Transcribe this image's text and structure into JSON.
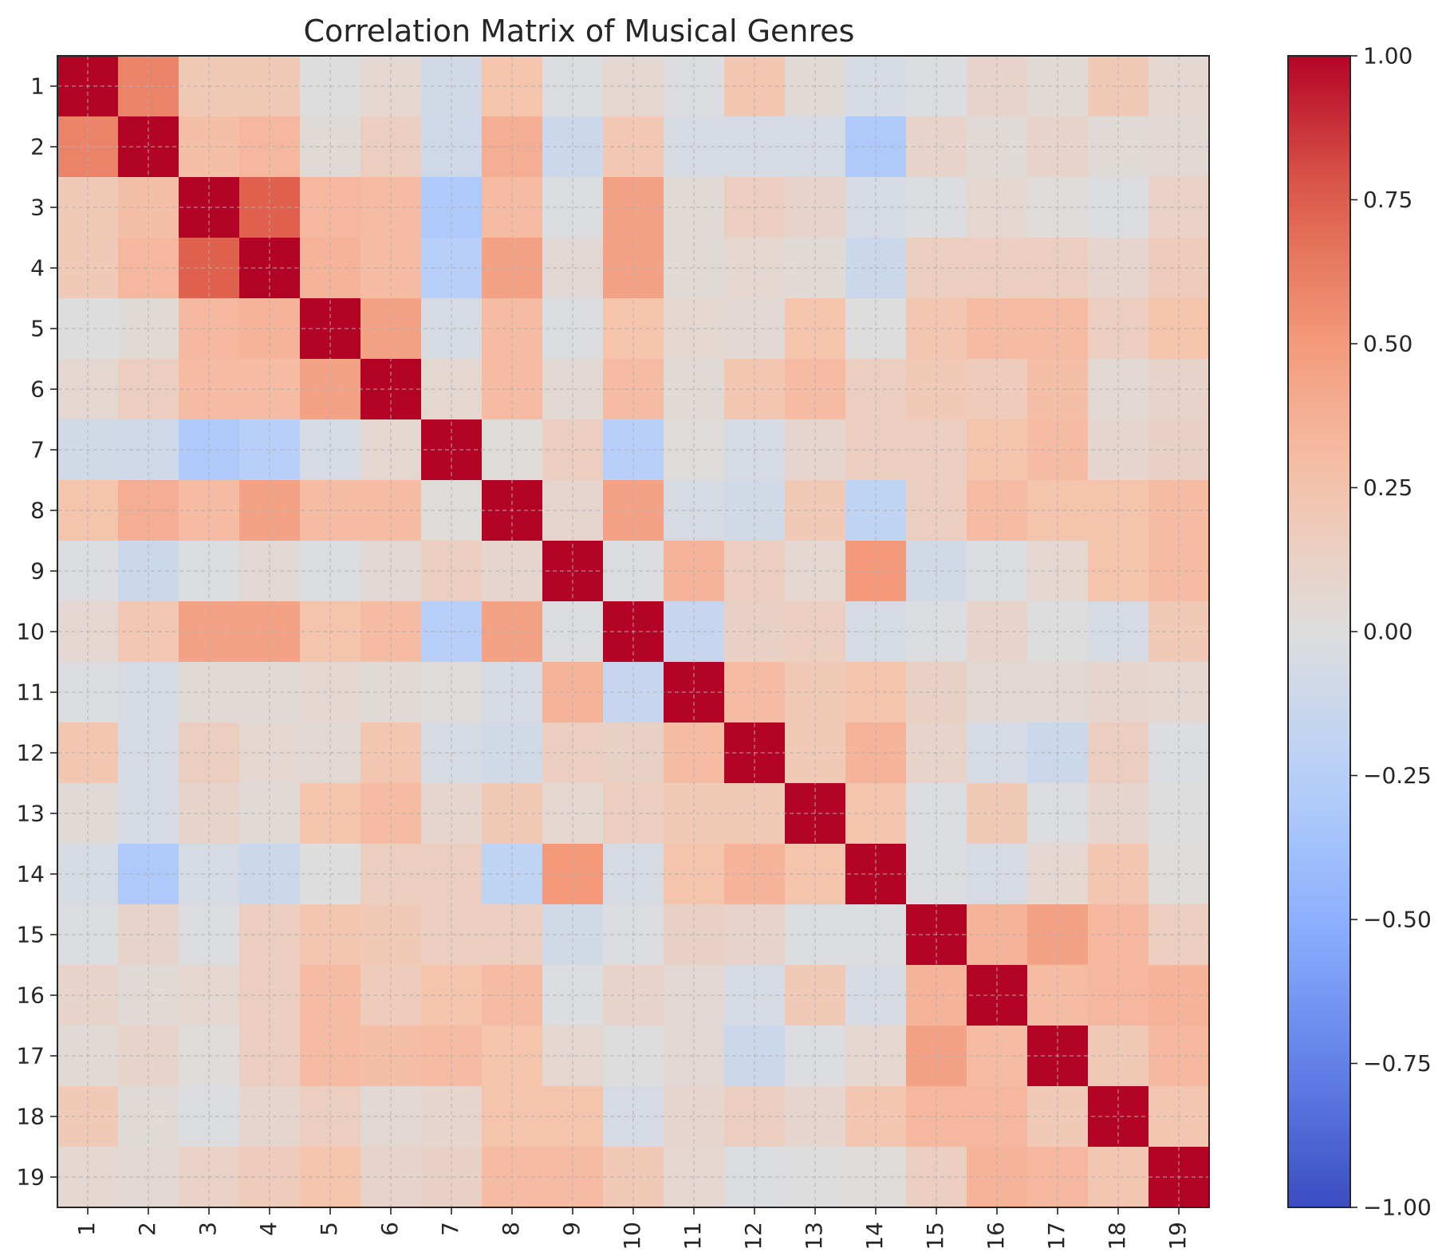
{
  "chart_data": {
    "type": "heatmap",
    "title": "Correlation Matrix of Musical Genres",
    "xlabel": "",
    "ylabel": "",
    "labels": [
      "1",
      "2",
      "3",
      "4",
      "5",
      "6",
      "7",
      "8",
      "9",
      "10",
      "11",
      "12",
      "13",
      "14",
      "15",
      "16",
      "17",
      "18",
      "19"
    ],
    "colormap": "coolwarm",
    "vmin": -1.0,
    "vmax": 1.0,
    "grid": true,
    "colorbar": {
      "ticks": [
        1.0,
        0.75,
        0.5,
        0.25,
        0.0,
        -0.25,
        -0.5,
        -0.75,
        -1.0
      ],
      "tick_labels": [
        "1.00",
        "0.75",
        "0.50",
        "0.25",
        "0.00",
        "−0.25",
        "−0.50",
        "−0.75",
        "−1.00"
      ]
    },
    "matrix": [
      [
        1.0,
        0.6,
        0.2,
        0.2,
        0.0,
        0.07,
        -0.08,
        0.25,
        -0.02,
        0.07,
        -0.02,
        0.23,
        0.03,
        -0.05,
        -0.02,
        0.1,
        0.03,
        0.2,
        0.07
      ],
      [
        0.6,
        1.0,
        0.28,
        0.32,
        0.03,
        0.15,
        -0.1,
        0.38,
        -0.12,
        0.22,
        -0.05,
        -0.05,
        -0.05,
        -0.3,
        0.1,
        0.03,
        0.1,
        0.03,
        0.05
      ],
      [
        0.2,
        0.28,
        1.0,
        0.75,
        0.32,
        0.3,
        -0.3,
        0.3,
        -0.02,
        0.45,
        0.03,
        0.15,
        0.1,
        -0.05,
        -0.02,
        0.07,
        0.02,
        -0.02,
        0.12
      ],
      [
        0.2,
        0.32,
        0.75,
        1.0,
        0.35,
        0.3,
        -0.25,
        0.45,
        0.05,
        0.45,
        0.03,
        0.07,
        0.03,
        -0.12,
        0.15,
        0.15,
        0.15,
        0.08,
        0.18
      ],
      [
        0.0,
        0.03,
        0.32,
        0.35,
        1.0,
        0.45,
        -0.05,
        0.3,
        -0.02,
        0.25,
        0.07,
        0.05,
        0.25,
        0.0,
        0.23,
        0.3,
        0.3,
        0.15,
        0.25
      ],
      [
        0.07,
        0.15,
        0.3,
        0.3,
        0.45,
        1.0,
        0.07,
        0.3,
        0.05,
        0.3,
        0.03,
        0.23,
        0.3,
        0.15,
        0.2,
        0.18,
        0.28,
        0.05,
        0.1
      ],
      [
        -0.08,
        -0.1,
        -0.3,
        -0.25,
        -0.05,
        0.07,
        1.0,
        0.02,
        0.15,
        -0.25,
        0.02,
        -0.05,
        0.08,
        0.15,
        0.15,
        0.25,
        0.3,
        0.08,
        0.13
      ],
      [
        0.25,
        0.38,
        0.3,
        0.45,
        0.3,
        0.3,
        0.02,
        1.0,
        0.08,
        0.45,
        -0.05,
        -0.08,
        0.2,
        -0.2,
        0.15,
        0.3,
        0.25,
        0.25,
        0.3
      ],
      [
        -0.02,
        -0.12,
        -0.02,
        0.05,
        -0.02,
        0.05,
        0.15,
        0.08,
        1.0,
        -0.02,
        0.35,
        0.15,
        0.07,
        0.5,
        -0.08,
        -0.02,
        0.07,
        0.25,
        0.3
      ],
      [
        0.07,
        0.22,
        0.45,
        0.45,
        0.25,
        0.3,
        -0.25,
        0.45,
        -0.02,
        1.0,
        -0.15,
        0.13,
        0.15,
        -0.05,
        -0.02,
        0.1,
        0.0,
        -0.05,
        0.2
      ],
      [
        -0.02,
        -0.05,
        0.03,
        0.03,
        0.07,
        0.03,
        0.02,
        -0.05,
        0.35,
        -0.15,
        1.0,
        0.3,
        0.2,
        0.25,
        0.13,
        0.05,
        0.05,
        0.08,
        0.07
      ],
      [
        0.23,
        -0.05,
        0.15,
        0.07,
        0.05,
        0.23,
        -0.05,
        -0.08,
        0.15,
        0.13,
        0.3,
        1.0,
        0.2,
        0.35,
        0.1,
        -0.05,
        -0.12,
        0.15,
        -0.02
      ],
      [
        0.03,
        -0.05,
        0.1,
        0.03,
        0.25,
        0.3,
        0.08,
        0.2,
        0.07,
        0.15,
        0.2,
        0.2,
        1.0,
        0.25,
        -0.02,
        0.2,
        -0.02,
        0.08,
        0.0
      ],
      [
        -0.05,
        -0.3,
        -0.05,
        -0.12,
        0.0,
        0.15,
        0.15,
        -0.2,
        0.5,
        -0.05,
        0.25,
        0.35,
        0.25,
        1.0,
        -0.02,
        -0.05,
        0.07,
        0.23,
        0.02
      ],
      [
        -0.02,
        0.1,
        -0.02,
        0.15,
        0.23,
        0.2,
        0.15,
        0.15,
        -0.08,
        -0.02,
        0.13,
        0.1,
        -0.02,
        -0.02,
        1.0,
        0.35,
        0.45,
        0.33,
        0.15
      ],
      [
        0.1,
        0.03,
        0.07,
        0.15,
        0.3,
        0.18,
        0.25,
        0.3,
        -0.02,
        0.1,
        0.05,
        -0.05,
        0.2,
        -0.05,
        0.35,
        1.0,
        0.3,
        0.33,
        0.35
      ],
      [
        0.03,
        0.1,
        0.02,
        0.15,
        0.3,
        0.28,
        0.3,
        0.25,
        0.07,
        0.0,
        0.05,
        -0.12,
        -0.02,
        0.07,
        0.45,
        0.3,
        1.0,
        0.2,
        0.33
      ],
      [
        0.2,
        0.03,
        -0.02,
        0.08,
        0.15,
        0.05,
        0.08,
        0.25,
        0.25,
        -0.05,
        0.08,
        0.15,
        0.08,
        0.23,
        0.33,
        0.33,
        0.2,
        1.0,
        0.23
      ],
      [
        0.07,
        0.05,
        0.12,
        0.18,
        0.25,
        0.1,
        0.13,
        0.3,
        0.3,
        0.2,
        0.07,
        -0.02,
        0.0,
        0.02,
        0.15,
        0.35,
        0.33,
        0.23,
        1.0
      ]
    ]
  }
}
